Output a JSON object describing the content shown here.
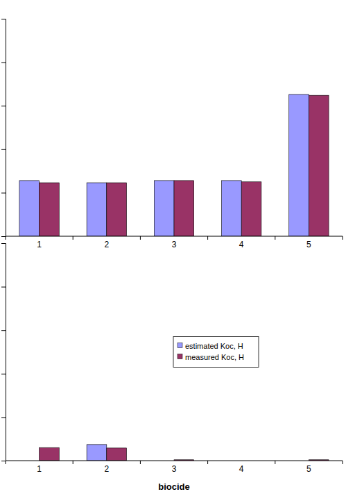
{
  "chart_data": [
    {
      "type": "bar",
      "categories": [
        "1",
        "2",
        "3",
        "4",
        "5"
      ],
      "series": [
        {
          "color": "#9999ff",
          "values": [
            1.28,
            1.23,
            1.28,
            1.28,
            3.26
          ]
        },
        {
          "color": "#993366",
          "values": [
            1.23,
            1.23,
            1.28,
            1.25,
            3.24
          ]
        }
      ],
      "ylim": [
        0,
        5
      ],
      "yticks": [
        0,
        1,
        2,
        3,
        4,
        5
      ],
      "tick_labels": "x"
    },
    {
      "type": "bar",
      "x_label": "biocide",
      "categories": [
        "1",
        "2",
        "3",
        "4",
        "5"
      ],
      "series": [
        {
          "name": "estimated Koc, H",
          "color": "#9999ff",
          "values": [
            0,
            0.37,
            0,
            0,
            0
          ]
        },
        {
          "name": "measured Koc, H",
          "color": "#993366",
          "values": [
            0.3,
            0.29,
            0.02,
            0,
            0.02
          ]
        }
      ],
      "ylim": [
        0,
        5
      ],
      "yticks": [
        0,
        1,
        2,
        3,
        4,
        5
      ],
      "tick_labels": "x",
      "legend": "center"
    }
  ]
}
